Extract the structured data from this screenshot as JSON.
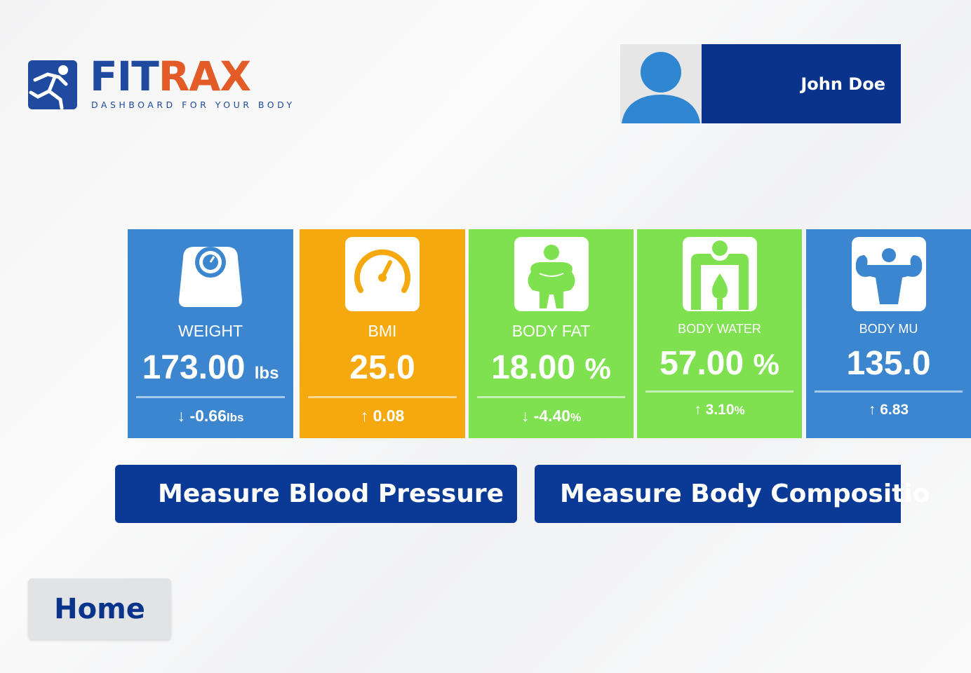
{
  "brand": {
    "name_part1": "FIT",
    "name_part2": "RAX",
    "tagline": "DASHBOARD FOR YOUR BODY",
    "colors": {
      "blue": "#1f4aa0",
      "orange": "#e35b26"
    }
  },
  "user": {
    "name": "John Doe",
    "avatar_icon": "person-silhouette-icon"
  },
  "tiles": [
    {
      "label": "WEIGHT",
      "value": "173.00",
      "unit": "lbs",
      "change": "-0.66",
      "change_unit": "lbs",
      "direction": "down",
      "icon": "scale-icon",
      "color": "#3b86cf"
    },
    {
      "label": "BMI",
      "value": "25.0",
      "unit": "",
      "change": "0.08",
      "change_unit": "",
      "direction": "up",
      "icon": "gauge-icon",
      "color": "#f6a90f"
    },
    {
      "label": "BODY FAT",
      "value": "18.00",
      "unit": "%",
      "change": "-4.40",
      "change_unit": "%",
      "direction": "down",
      "icon": "body-fat-icon",
      "color": "#7fe150"
    },
    {
      "label": "BODY WATER",
      "value": "57.00",
      "unit": "%",
      "change": "3.10",
      "change_unit": "%",
      "direction": "up",
      "icon": "body-water-icon",
      "color": "#7fe150"
    },
    {
      "label": "BODY MU",
      "value": "135.0",
      "unit": "",
      "change": "6.83",
      "change_unit": "",
      "direction": "up",
      "icon": "muscle-icon",
      "color": "#3b86cf"
    }
  ],
  "actions": {
    "blood_pressure": "Measure Blood Pressure",
    "body_composition": "Measure Body Compositio"
  },
  "nav": {
    "home": "Home"
  }
}
